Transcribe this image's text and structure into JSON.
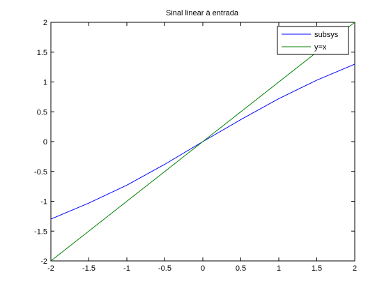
{
  "chart_data": {
    "type": "line",
    "title": "Sinal linear à entrada",
    "xlabel": "",
    "ylabel": "",
    "xlim": [
      -2,
      2
    ],
    "ylim": [
      -2,
      2
    ],
    "xticks": [
      -2,
      -1.5,
      -1,
      -0.5,
      0,
      0.5,
      1,
      1.5,
      2
    ],
    "yticks": [
      -2,
      -1.5,
      -1,
      -0.5,
      0,
      0.5,
      1,
      1.5,
      2
    ],
    "xtick_labels": [
      "-2",
      "-1.5",
      "-1",
      "-0.5",
      "0",
      "0.5",
      "1",
      "1.5",
      "2"
    ],
    "ytick_labels": [
      "-2",
      "-1.5",
      "-1",
      "-0.5",
      "0",
      "0.5",
      "1",
      "1.5",
      "2"
    ],
    "grid": false,
    "legend_position": "top-right",
    "series": [
      {
        "name": "subsys",
        "color": "#0000ff",
        "x": [
          -2,
          -1.5,
          -1,
          -0.5,
          0,
          0.5,
          1,
          1.5,
          2
        ],
        "y": [
          -1.3,
          -1.03,
          -0.73,
          -0.38,
          0,
          0.37,
          0.72,
          1.03,
          1.3
        ]
      },
      {
        "name": "y=x",
        "color": "#008000",
        "x": [
          -2,
          2
        ],
        "y": [
          -2,
          2
        ]
      }
    ]
  }
}
